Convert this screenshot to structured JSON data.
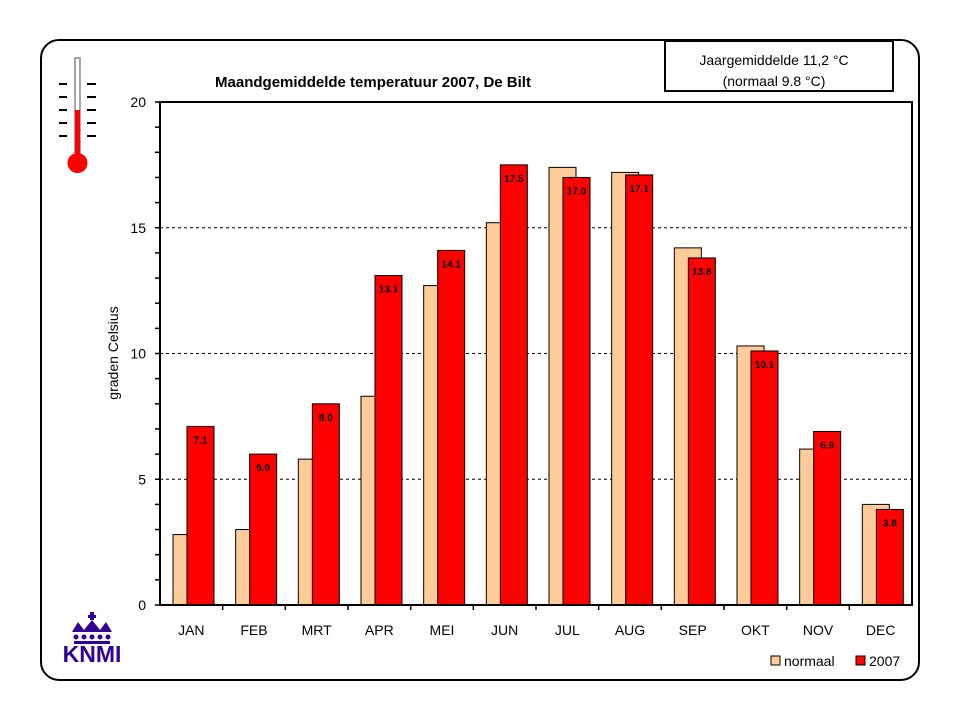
{
  "chart_data": {
    "type": "bar",
    "title": "Maandgemiddelde temperatuur 2007, De Bilt",
    "ylabel": "graden Celsius",
    "xlabel": "",
    "ylim": [
      0,
      20
    ],
    "yticks": [
      0,
      5,
      10,
      15,
      20
    ],
    "grid": "horizontal dashed at major ticks",
    "legend_position": "bottom-right",
    "categories": [
      "JAN",
      "FEB",
      "MRT",
      "APR",
      "MEI",
      "JUN",
      "JUL",
      "AUG",
      "SEP",
      "OKT",
      "NOV",
      "DEC"
    ],
    "series": [
      {
        "name": "normaal",
        "color": "#FFCC99",
        "values": [
          2.8,
          3.0,
          5.8,
          8.3,
          12.7,
          15.2,
          17.4,
          17.2,
          14.2,
          10.3,
          6.2,
          4.0
        ]
      },
      {
        "name": "2007",
        "color": "#FF0000",
        "values": [
          7.1,
          6.0,
          8.0,
          13.1,
          14.1,
          17.5,
          17.0,
          17.1,
          13.8,
          10.1,
          6.9,
          3.8
        ],
        "labels": [
          "7.1",
          "6.0",
          "8.0",
          "13.1",
          "14.1",
          "17.5",
          "17.0",
          "17.1",
          "13.8",
          "10.1",
          "6.9",
          "3.8"
        ]
      }
    ]
  },
  "summary_box": {
    "line1": "Jaargemiddelde 11,2 °C",
    "line2": "(normaal 9.8 °C)"
  },
  "logo": {
    "text": "KNMI",
    "color": "#330099"
  },
  "icons": [
    "thermometer-icon",
    "knmi-crown-logo"
  ]
}
